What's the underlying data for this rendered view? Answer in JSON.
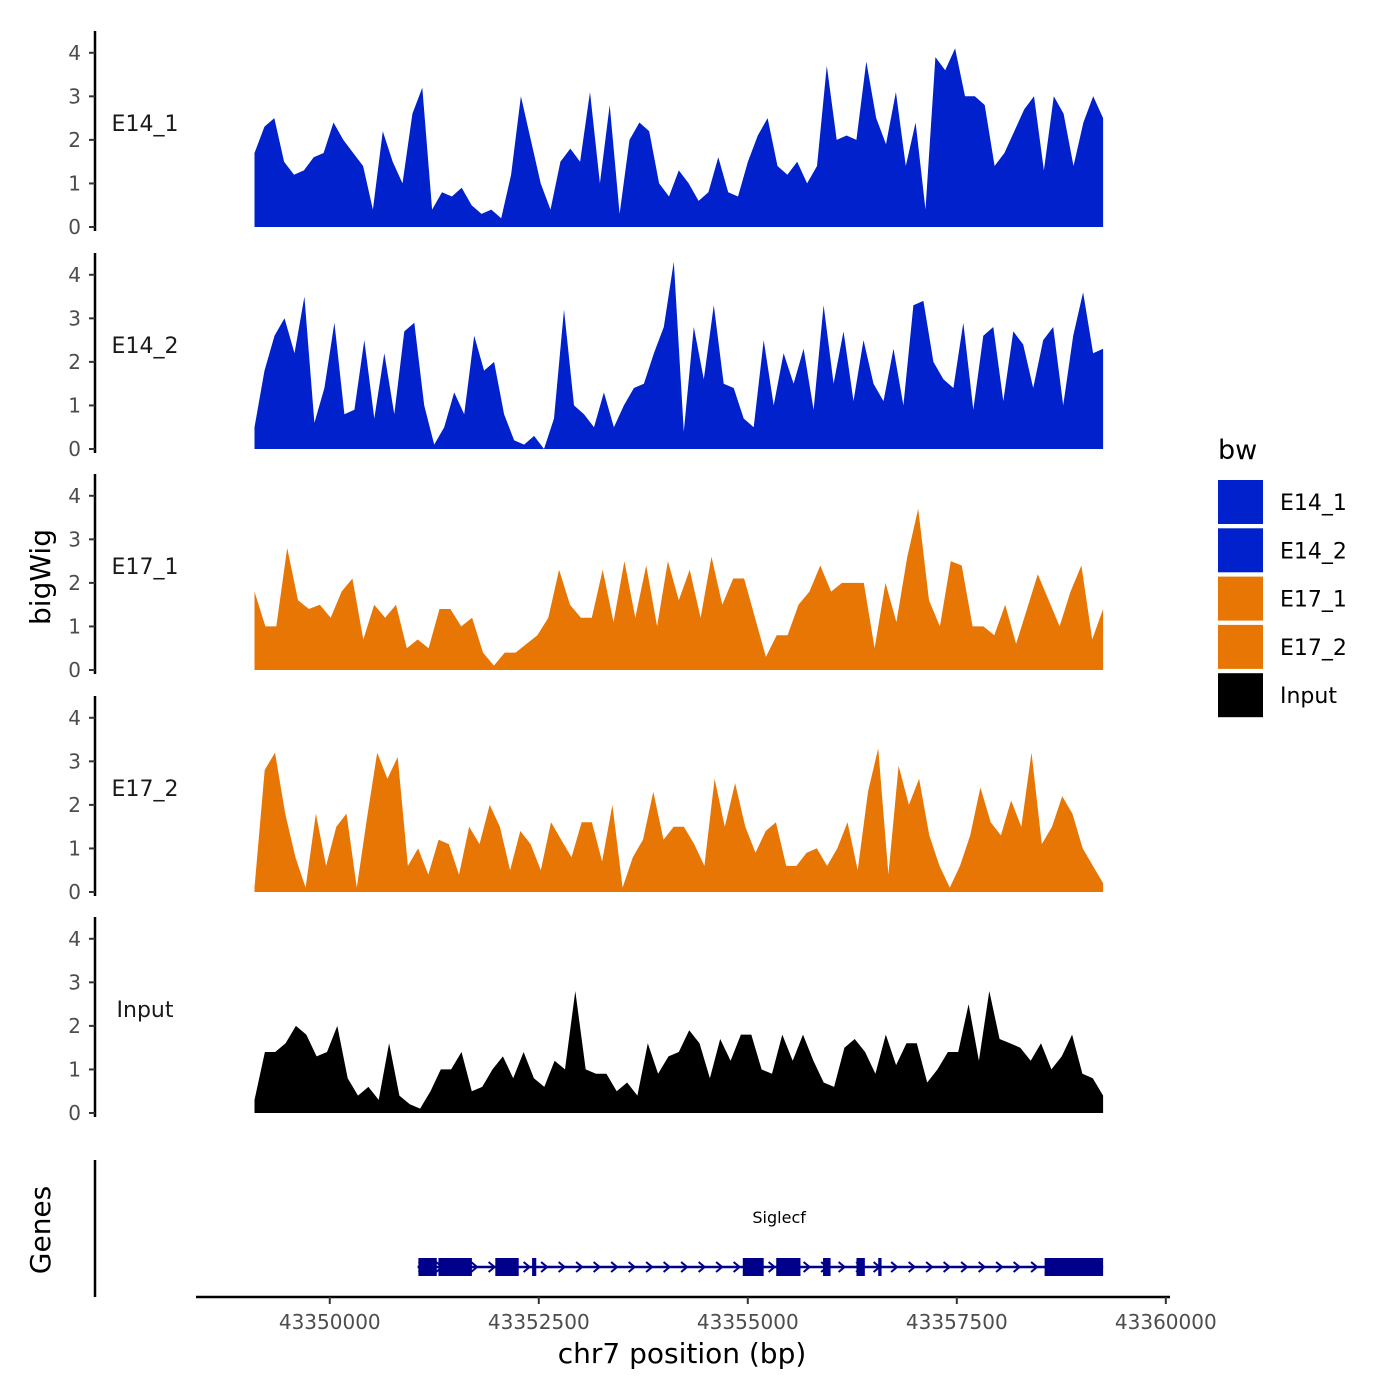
{
  "chart_data": {
    "type": "area",
    "chromosome": "chr7",
    "xlabel": "chr7 position (bp)",
    "ylabel": "bigWig",
    "genes_label": "Genes",
    "xlim": [
      43348400,
      43360050
    ],
    "ylim": [
      0,
      4.5
    ],
    "region": [
      43349100,
      43359250
    ],
    "x_ticks": [
      43350000,
      43352500,
      43355000,
      43357500,
      43360000
    ],
    "x_tick_labels": [
      "43350000",
      "43352500",
      "43355000",
      "43357500",
      "43360000"
    ],
    "y_ticks": [
      0,
      1,
      2,
      3,
      4
    ],
    "y_tick_labels": [
      "0",
      "1",
      "2",
      "3",
      "4"
    ],
    "legend": {
      "title": "bw",
      "entries": [
        {
          "label": "E14_1",
          "color": "#0021CC"
        },
        {
          "label": "E14_2",
          "color": "#0021CC"
        },
        {
          "label": "E17_1",
          "color": "#E87604"
        },
        {
          "label": "E17_2",
          "color": "#E87604"
        },
        {
          "label": "Input",
          "color": "#000000"
        }
      ]
    },
    "series": [
      {
        "name": "E14_1",
        "color": "#0021CC",
        "values": [
          1.7,
          2.3,
          2.5,
          1.5,
          1.2,
          1.3,
          1.6,
          1.7,
          2.4,
          2.0,
          1.7,
          1.4,
          0.4,
          2.2,
          1.5,
          1.0,
          2.6,
          3.2,
          0.4,
          0.8,
          0.7,
          0.9,
          0.5,
          0.3,
          0.4,
          0.2,
          1.2,
          3.0,
          2.0,
          1.0,
          0.4,
          1.5,
          1.8,
          1.5,
          3.1,
          1.0,
          2.8,
          0.3,
          2.0,
          2.4,
          2.2,
          1.0,
          0.7,
          1.3,
          1.0,
          0.6,
          0.8,
          1.6,
          0.8,
          0.7,
          1.5,
          2.1,
          2.5,
          1.4,
          1.2,
          1.5,
          1.0,
          1.4,
          3.7,
          2.0,
          2.1,
          2.0,
          3.8,
          2.5,
          1.9,
          3.1,
          1.4,
          2.4,
          0.4,
          3.9,
          3.6,
          4.1,
          3.0,
          3.0,
          2.8,
          1.4,
          1.7,
          2.2,
          2.7,
          3.0,
          1.3,
          3.0,
          2.6,
          1.4,
          2.4,
          3.0,
          2.5
        ]
      },
      {
        "name": "E14_2",
        "color": "#0021CC",
        "values": [
          0.5,
          1.8,
          2.6,
          3.0,
          2.2,
          3.5,
          0.6,
          1.4,
          2.9,
          0.8,
          0.9,
          2.5,
          0.7,
          2.2,
          0.8,
          2.7,
          2.9,
          1.0,
          0.1,
          0.5,
          1.3,
          0.8,
          2.6,
          1.8,
          2.0,
          0.8,
          0.2,
          0.1,
          0.3,
          0.0,
          0.7,
          3.2,
          1.0,
          0.8,
          0.5,
          1.3,
          0.5,
          1.0,
          1.4,
          1.5,
          2.2,
          2.8,
          4.3,
          0.4,
          2.8,
          1.6,
          3.3,
          1.5,
          1.4,
          0.7,
          0.5,
          2.5,
          1.0,
          2.2,
          1.5,
          2.3,
          0.9,
          3.3,
          1.5,
          2.7,
          1.1,
          2.5,
          1.5,
          1.1,
          2.3,
          1.0,
          3.3,
          3.4,
          2.0,
          1.6,
          1.4,
          2.9,
          0.9,
          2.6,
          2.8,
          1.1,
          2.7,
          2.4,
          1.4,
          2.5,
          2.8,
          1.0,
          2.6,
          3.6,
          2.2,
          2.3
        ]
      },
      {
        "name": "E17_1",
        "color": "#E87604",
        "values": [
          1.8,
          1.0,
          1.0,
          2.8,
          1.6,
          1.4,
          1.5,
          1.2,
          1.8,
          2.1,
          0.7,
          1.5,
          1.2,
          1.5,
          0.5,
          0.7,
          0.5,
          1.4,
          1.4,
          1.0,
          1.2,
          0.4,
          0.1,
          0.4,
          0.4,
          0.6,
          0.8,
          1.2,
          2.3,
          1.5,
          1.2,
          1.2,
          2.3,
          1.1,
          2.5,
          1.2,
          2.4,
          1.0,
          2.5,
          1.6,
          2.3,
          1.2,
          2.6,
          1.5,
          2.1,
          2.1,
          1.2,
          0.3,
          0.8,
          0.8,
          1.5,
          1.8,
          2.4,
          1.8,
          2.0,
          2.0,
          2.0,
          0.5,
          2.0,
          1.1,
          2.6,
          3.7,
          1.6,
          1.0,
          2.5,
          2.4,
          1.0,
          1.0,
          0.8,
          1.5,
          0.6,
          1.4,
          2.2,
          1.6,
          1.0,
          1.8,
          2.4,
          0.7,
          1.4
        ]
      },
      {
        "name": "E17_2",
        "color": "#E87604",
        "values": [
          0.1,
          2.8,
          3.2,
          1.8,
          0.8,
          0.1,
          1.8,
          0.6,
          1.5,
          1.8,
          0.1,
          1.7,
          3.2,
          2.6,
          3.1,
          0.6,
          1.0,
          0.4,
          1.2,
          1.1,
          0.4,
          1.5,
          1.1,
          2.0,
          1.5,
          0.5,
          1.4,
          1.1,
          0.5,
          1.6,
          1.2,
          0.8,
          1.6,
          1.6,
          0.7,
          2.0,
          0.1,
          0.8,
          1.2,
          2.3,
          1.2,
          1.5,
          1.5,
          1.1,
          0.6,
          2.6,
          1.5,
          2.5,
          1.5,
          0.9,
          1.4,
          1.6,
          0.6,
          0.6,
          0.9,
          1.0,
          0.6,
          1.0,
          1.6,
          0.5,
          2.3,
          3.3,
          0.4,
          2.9,
          2.0,
          2.6,
          1.3,
          0.6,
          0.1,
          0.6,
          1.3,
          2.4,
          1.6,
          1.3,
          2.1,
          1.5,
          3.2,
          1.1,
          1.5,
          2.2,
          1.8,
          1.0,
          0.6,
          0.2
        ]
      },
      {
        "name": "Input",
        "color": "#000000",
        "values": [
          0.3,
          1.4,
          1.4,
          1.6,
          2.0,
          1.8,
          1.3,
          1.4,
          2.0,
          0.8,
          0.4,
          0.6,
          0.3,
          1.6,
          0.4,
          0.2,
          0.1,
          0.5,
          1.0,
          1.0,
          1.4,
          0.5,
          0.6,
          1.0,
          1.3,
          0.8,
          1.4,
          0.8,
          0.6,
          1.2,
          1.0,
          2.8,
          1.0,
          0.9,
          0.9,
          0.5,
          0.7,
          0.4,
          1.6,
          0.9,
          1.3,
          1.4,
          1.9,
          1.6,
          0.8,
          1.7,
          1.2,
          1.8,
          1.8,
          1.0,
          0.9,
          1.8,
          1.2,
          1.8,
          1.2,
          0.7,
          0.6,
          1.5,
          1.7,
          1.4,
          0.9,
          1.8,
          1.1,
          1.6,
          1.6,
          0.7,
          1.0,
          1.4,
          1.4,
          2.5,
          1.2,
          2.8,
          1.7,
          1.6,
          1.5,
          1.2,
          1.6,
          1.0,
          1.3,
          1.8,
          0.9,
          0.8,
          0.4
        ]
      }
    ],
    "gene": {
      "name": "Siglecf",
      "strand": "+",
      "color": "#00008B",
      "start": 43351050,
      "end": 43359250,
      "exons": [
        [
          43351060,
          43351280
        ],
        [
          43351300,
          43351700
        ],
        [
          43351980,
          43352260
        ],
        [
          43352420,
          43352470
        ],
        [
          43354940,
          43355190
        ],
        [
          43355340,
          43355630
        ],
        [
          43355900,
          43355990
        ],
        [
          43356300,
          43356400
        ],
        [
          43356560,
          43356600
        ],
        [
          43358550,
          43359250
        ]
      ]
    }
  }
}
